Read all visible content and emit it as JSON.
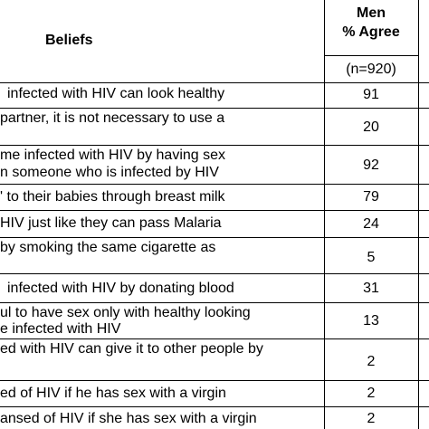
{
  "header": {
    "beliefs_label": "Beliefs",
    "men_label": "Men",
    "agree_label": "% Agree",
    "sample_label": "(n=920)"
  },
  "rows": [
    {
      "lines": [
        "infected with HIV can look healthy"
      ],
      "value": "91"
    },
    {
      "lines": [
        "partner, it is not necessary to use a"
      ],
      "value": "20"
    },
    {
      "lines": [
        "me infected with HIV by having sex",
        "n someone who is infected by HIV"
      ],
      "value": "92"
    },
    {
      "lines": [
        "' to their babies through breast milk"
      ],
      "value": "79"
    },
    {
      "lines": [
        "HIV just like they can pass Malaria"
      ],
      "value": "24"
    },
    {
      "lines": [
        "by smoking the same cigarette as"
      ],
      "value": "5"
    },
    {
      "lines": [
        "infected with HIV by donating blood"
      ],
      "value": "31"
    },
    {
      "lines": [
        "ul to have sex only with healthy looking",
        "e infected with HIV"
      ],
      "value": "13"
    },
    {
      "lines": [
        "ed with HIV can give it to other people by"
      ],
      "value": "2"
    },
    {
      "lines": [
        "ed of HIV if he has sex with a virgin"
      ],
      "value": "2"
    },
    {
      "lines": [
        "ansed of HIV if she has sex with a virgin"
      ],
      "value": "2"
    }
  ]
}
